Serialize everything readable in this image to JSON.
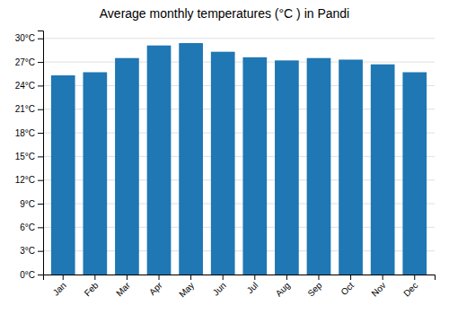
{
  "chart_data": {
    "type": "bar",
    "title": "Average monthly temperatures (°C ) in Pandi",
    "categories": [
      "Jan",
      "Feb",
      "Mar",
      "Apr",
      "May",
      "Jun",
      "Jul",
      "Aug",
      "Sep",
      "Oct",
      "Nov",
      "Dec"
    ],
    "values": [
      25.3,
      25.7,
      27.5,
      29.1,
      29.4,
      28.3,
      27.6,
      27.2,
      27.5,
      27.3,
      26.7,
      25.7
    ],
    "ylim": [
      0,
      31
    ],
    "yticks": [
      {
        "value": 0,
        "label": "0°C"
      },
      {
        "value": 3,
        "label": "3°C"
      },
      {
        "value": 6,
        "label": "6°C"
      },
      {
        "value": 9,
        "label": "9°C"
      },
      {
        "value": 12,
        "label": "12°C"
      },
      {
        "value": 15,
        "label": "15°C"
      },
      {
        "value": 18,
        "label": "18°C"
      },
      {
        "value": 21,
        "label": "21°C"
      },
      {
        "value": 24,
        "label": "24°C"
      },
      {
        "value": 27,
        "label": "27°C"
      },
      {
        "value": 30,
        "label": "30°C"
      }
    ],
    "grid": true
  }
}
